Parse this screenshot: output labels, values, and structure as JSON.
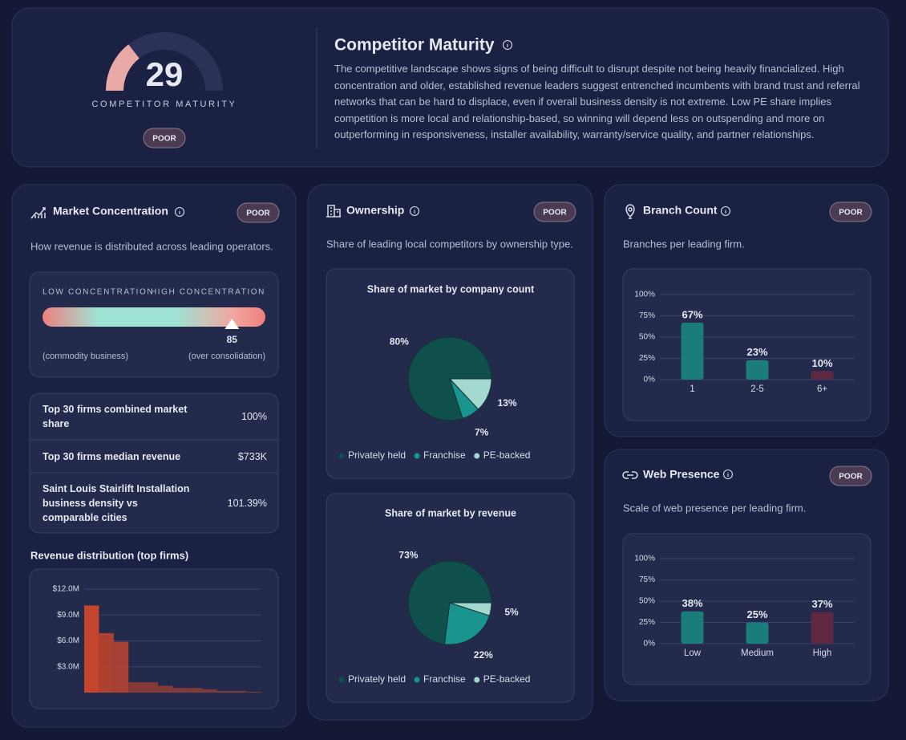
{
  "header": {
    "score": 29,
    "score_range": [
      0,
      100
    ],
    "score_label": "COMPETITOR MATURITY",
    "rating": "POOR",
    "title": "Competitor Maturity",
    "description": "The competitive landscape shows signs of being difficult to disrupt despite not being heavily financialized. High concentration and older, established revenue leaders suggest entrenched incumbents with brand trust and referral networks that can be hard to displace, even if overall business density is not extreme. Low PE share implies competition is more local and relationship-based, so winning will depend less on outspending and more on outperforming in responsiveness, installer availability, warranty/service quality, and partner relationships."
  },
  "market_concentration": {
    "title": "Market Concentration",
    "rating": "POOR",
    "subtitle": "How revenue is distributed across leading operators.",
    "scale": {
      "low_label": "LOW CONCENTRATION",
      "high_label": "HIGH CONCENTRATION",
      "value": 85,
      "range": [
        0,
        100
      ],
      "low_note": "(commodity business)",
      "high_note": "(over consolidation)"
    },
    "stats": [
      [
        "Top 30 firms combined market share",
        "100%"
      ],
      [
        "Top 30 firms median revenue",
        "$733K"
      ],
      [
        "Saint Louis Stairlift Installation business density vs comparable cities",
        "101.39%"
      ]
    ],
    "revenue_chart": {
      "type": "bar",
      "title": "Revenue distribution (top firms)",
      "values": [
        10100000,
        6900000,
        5900000,
        1200000,
        1200000,
        800000,
        550000,
        550000,
        400000,
        200000,
        200000,
        100000
      ],
      "color": "#c4452d",
      "ylim": [
        0,
        12000000
      ],
      "yticks": [
        {
          "value": 3000000,
          "label": "$3.0M"
        },
        {
          "value": 6000000,
          "label": "$6.0M"
        },
        {
          "value": 9000000,
          "label": "$9.0M"
        },
        {
          "value": 12000000,
          "label": "$12.0M"
        }
      ],
      "grid": true
    }
  },
  "ownership": {
    "title": "Ownership",
    "rating": "POOR",
    "subtitle": "Share of leading local competitors by ownership type.",
    "charts": [
      {
        "type": "pie",
        "title": "Share of market by company count",
        "categories": [
          "Privately held",
          "Franchise",
          "PE-backed"
        ],
        "colors": [
          "#0f4f4c",
          "#1a948e",
          "#a3d9d1"
        ],
        "values": [
          80,
          7,
          13
        ],
        "value_labels": [
          "80%",
          "7%",
          "13%"
        ]
      },
      {
        "type": "pie",
        "title": "Share of market by revenue",
        "categories": [
          "Privately held",
          "Franchise",
          "PE-backed"
        ],
        "colors": [
          "#0f4f4c",
          "#1a948e",
          "#a3d9d1"
        ],
        "values": [
          73,
          22,
          5
        ],
        "value_labels": [
          "73%",
          "22%",
          "5%"
        ]
      }
    ]
  },
  "branch_count": {
    "title": "Branch Count",
    "rating": "POOR",
    "subtitle": "Branches per leading firm.",
    "chart": {
      "type": "bar",
      "categories": [
        "1",
        "2-5",
        "6+"
      ],
      "values": [
        67,
        23,
        10
      ],
      "value_labels": [
        "67%",
        "23%",
        "10%"
      ],
      "colors": [
        "#1b7d7b",
        "#1b7d7b",
        "#5e2940"
      ],
      "ylim": [
        0,
        100
      ],
      "yticks": [
        {
          "value": 0,
          "label": "0%"
        },
        {
          "value": 25,
          "label": "25%"
        },
        {
          "value": 50,
          "label": "50%"
        },
        {
          "value": 75,
          "label": "75%"
        },
        {
          "value": 100,
          "label": "100%"
        }
      ],
      "grid": true
    }
  },
  "web_presence": {
    "title": "Web Presence",
    "rating": "POOR",
    "subtitle": "Scale of web presence per leading firm.",
    "chart": {
      "type": "bar",
      "categories": [
        "Low",
        "Medium",
        "High"
      ],
      "values": [
        38,
        25,
        37
      ],
      "value_labels": [
        "38%",
        "25%",
        "37%"
      ],
      "colors": [
        "#1b7d7b",
        "#1b7d7b",
        "#5e2940"
      ],
      "ylim": [
        0,
        100
      ],
      "yticks": [
        {
          "value": 0,
          "label": "0%"
        },
        {
          "value": 25,
          "label": "25%"
        },
        {
          "value": 50,
          "label": "50%"
        },
        {
          "value": 75,
          "label": "75%"
        },
        {
          "value": 100,
          "label": "100%"
        }
      ],
      "grid": true
    }
  }
}
